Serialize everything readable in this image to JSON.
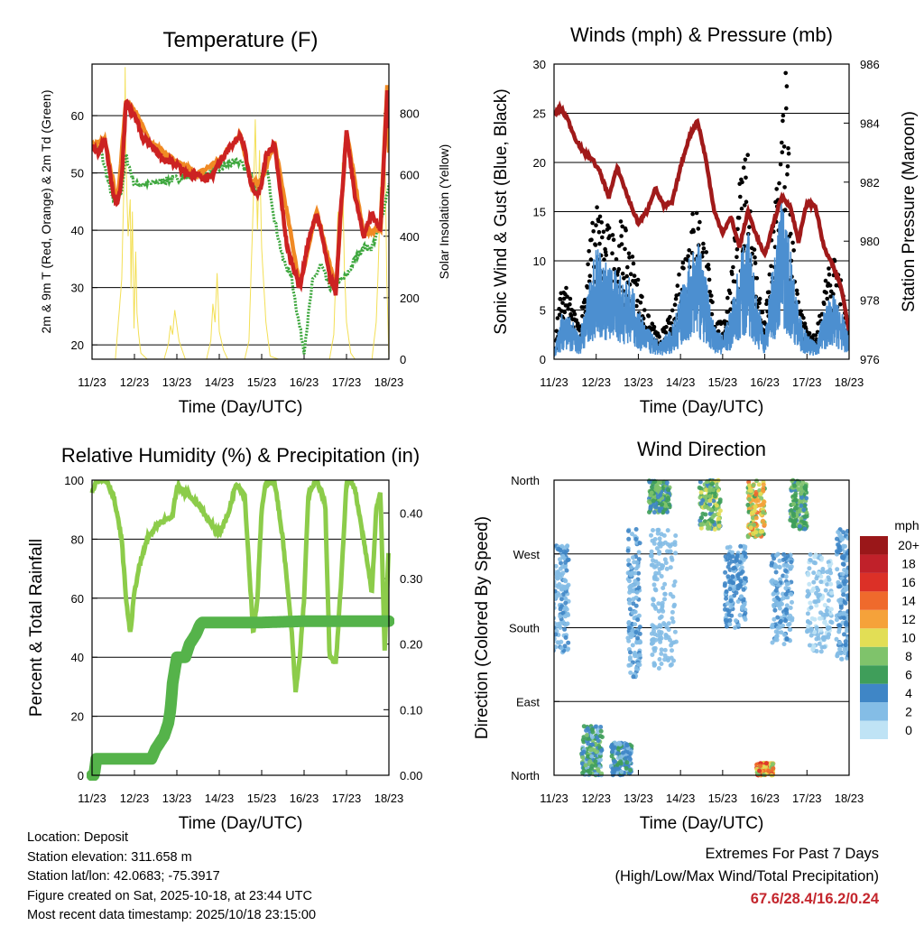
{
  "chart_data": [
    {
      "type": "line",
      "panel": "temperature",
      "title": "Temperature (F)",
      "xlabel": "Time (Day/UTC)",
      "ylabel": "2m & 9m T (Red, Orange) & 2m Td (Green)",
      "y2label": "Solar Insolation (Yellow)",
      "xticks": [
        "11/23",
        "12/23",
        "13/23",
        "14/23",
        "15/23",
        "16/23",
        "17/23",
        "18/23"
      ],
      "xlim": [
        0,
        7
      ],
      "ylim": [
        17.5,
        69
      ],
      "yticks": [
        20,
        30,
        40,
        50,
        60
      ],
      "y2lim": [
        0,
        960
      ],
      "y2ticks": [
        0,
        200,
        400,
        600,
        800
      ],
      "colors": {
        "t2m": "#cc2222",
        "t9m": "#f08a24",
        "dewpoint": "#3ea73e",
        "solar": "#f3df55"
      },
      "series": [
        {
          "name": "2m T",
          "key": "t2m",
          "x": [
            0,
            0.15,
            0.3,
            0.5,
            0.6,
            0.7,
            0.8,
            0.9,
            1.0,
            1.2,
            1.4,
            1.6,
            1.8,
            2.0,
            2.2,
            2.5,
            2.8,
            3.0,
            3.3,
            3.5,
            3.6,
            3.75,
            3.9,
            4.0,
            4.1,
            4.3,
            4.6,
            4.9,
            5.1,
            5.3,
            5.45,
            5.6,
            5.75,
            5.85,
            6.0,
            6.2,
            6.4,
            6.6,
            6.8,
            6.9,
            6.97,
            7.0
          ],
          "values": [
            55,
            53.5,
            56,
            46,
            44.5,
            49,
            62.5,
            61,
            60.5,
            56,
            55,
            53,
            52,
            51.5,
            50,
            49.5,
            49,
            52,
            55,
            56.5,
            54,
            48,
            46,
            48,
            53,
            55,
            37,
            30,
            38,
            43,
            38,
            32,
            29,
            42,
            57,
            46,
            39,
            43,
            40,
            55,
            66,
            53
          ]
        },
        {
          "name": "9m T",
          "key": "t9m",
          "x": [
            0,
            0.3,
            0.6,
            0.8,
            1.0,
            1.4,
            2.0,
            2.5,
            3.0,
            3.5,
            3.75,
            4.0,
            4.3,
            4.9,
            5.3,
            5.75,
            6.0,
            6.4,
            6.8,
            6.97,
            7.0
          ],
          "values": [
            54.8,
            55.6,
            44.8,
            62.8,
            60.8,
            55.2,
            51.8,
            49.8,
            52.2,
            56.8,
            48.2,
            48.6,
            55.4,
            30.4,
            43.4,
            29.6,
            57.4,
            39.4,
            40.4,
            66.6,
            53.4
          ]
        },
        {
          "name": "2m Td",
          "key": "dewpoint",
          "x": [
            0,
            0.2,
            0.5,
            0.7,
            0.8,
            1.0,
            1.3,
            1.6,
            2.0,
            2.4,
            2.8,
            3.2,
            3.5,
            3.7,
            3.9,
            4.0,
            4.1,
            4.3,
            4.5,
            4.7,
            4.85,
            5.0,
            5.2,
            5.4,
            5.6,
            5.8,
            6.0,
            6.2,
            6.4,
            6.6,
            6.8,
            7.0
          ],
          "values": [
            55,
            54,
            45,
            47,
            53,
            48,
            48,
            48.5,
            49,
            49.5,
            50,
            51.5,
            52,
            50,
            47,
            49,
            52,
            42,
            35,
            32,
            25,
            19,
            31,
            34,
            30,
            31,
            32,
            35,
            37,
            37,
            41,
            48
          ]
        },
        {
          "name": "Solar Insolation",
          "key": "solar",
          "axis": "y2",
          "x": [
            0,
            0.55,
            0.62,
            0.7,
            0.72,
            0.74,
            0.77,
            0.78,
            0.8,
            0.85,
            0.9,
            0.92,
            0.95,
            0.99,
            1.03,
            1.06,
            1.1,
            1.15,
            1.3,
            1.7,
            1.8,
            1.85,
            1.9,
            1.95,
            2.05,
            2.2,
            2.7,
            2.8,
            2.85,
            2.9,
            2.95,
            3.0,
            3.1,
            3.2,
            3.6,
            3.7,
            3.75,
            3.8,
            3.85,
            3.9,
            3.95,
            4.0,
            4.1,
            4.2,
            4.4,
            4.7,
            5.0,
            5.3,
            5.6,
            5.7,
            5.75,
            5.8,
            5.85,
            5.9,
            5.95,
            6.0,
            6.1,
            6.2,
            6.4,
            6.6,
            6.7,
            6.75,
            6.8,
            6.85,
            6.9,
            6.95,
            7.0
          ],
          "values": [
            0,
            0,
            120,
            260,
            380,
            500,
            700,
            950,
            640,
            400,
            520,
            230,
            480,
            100,
            350,
            150,
            80,
            20,
            0,
            0,
            50,
            110,
            80,
            160,
            60,
            0,
            0,
            60,
            180,
            120,
            280,
            90,
            30,
            0,
            0,
            60,
            280,
            500,
            780,
            420,
            680,
            360,
            120,
            10,
            0,
            0,
            0,
            0,
            0,
            80,
            280,
            480,
            400,
            640,
            300,
            120,
            20,
            0,
            0,
            0,
            120,
            300,
            560,
            420,
            760,
            260,
            0
          ]
        }
      ]
    },
    {
      "type": "line",
      "panel": "winds",
      "title": "Winds (mph) & Pressure (mb)",
      "xlabel": "Time (Day/UTC)",
      "ylabel": "Sonic Wind & Gust (Blue, Black)",
      "y2label": "Station Pressure (Maroon)",
      "xticks": [
        "11/23",
        "12/23",
        "13/23",
        "14/23",
        "15/23",
        "16/23",
        "17/23",
        "18/23"
      ],
      "xlim": [
        0,
        7
      ],
      "ylim": [
        0,
        30
      ],
      "yticks": [
        0,
        5,
        10,
        15,
        20,
        25,
        30
      ],
      "y2lim": [
        976,
        986
      ],
      "y2ticks": [
        976,
        978,
        980,
        982,
        984,
        986
      ],
      "colors": {
        "wind": "#4c8fd0",
        "gust": "#000000",
        "pressure": "#a01a1a"
      },
      "series": [
        {
          "name": "Sonic Wind",
          "key": "wind",
          "x": [
            0,
            0.2,
            0.4,
            0.5,
            0.6,
            0.8,
            1.0,
            1.2,
            1.4,
            1.6,
            1.8,
            2.0,
            2.2,
            2.5,
            2.8,
            3.0,
            3.2,
            3.4,
            3.6,
            3.8,
            4.0,
            4.2,
            4.4,
            4.6,
            4.8,
            5.0,
            5.2,
            5.4,
            5.6,
            5.8,
            6.0,
            6.2,
            6.4,
            6.6,
            6.8,
            7.0
          ],
          "values": [
            0.5,
            3,
            2.5,
            2,
            1.5,
            4,
            7,
            6,
            5.5,
            5,
            5,
            3,
            2,
            1,
            2,
            4,
            6,
            7.5,
            5,
            2,
            1.5,
            3,
            6,
            8,
            4,
            1.5,
            6,
            10,
            7,
            3,
            1.5,
            1,
            3,
            4,
            3,
            1.5
          ]
        },
        {
          "name": "Gust",
          "key": "gust",
          "x": [
            0,
            0.2,
            0.4,
            0.6,
            0.8,
            1.0,
            1.2,
            1.4,
            1.6,
            1.8,
            2.0,
            2.2,
            2.5,
            2.8,
            3.0,
            3.2,
            3.4,
            3.6,
            3.8,
            4.0,
            4.2,
            4.4,
            4.6,
            4.8,
            5.0,
            5.2,
            5.4,
            5.5,
            5.6,
            5.8,
            6.0,
            6.2,
            6.4,
            6.6,
            6.8,
            7.0
          ],
          "values": [
            1,
            7,
            5,
            3,
            9,
            14,
            12,
            11,
            12,
            10,
            7,
            4,
            2,
            4,
            9,
            12,
            14,
            10,
            4,
            3,
            8,
            15,
            18,
            8,
            3,
            12,
            22,
            27,
            14,
            5,
            2.5,
            2,
            6,
            9,
            7,
            3
          ]
        },
        {
          "name": "Station Pressure",
          "key": "pressure",
          "axis": "y2",
          "x": [
            0,
            0.15,
            0.3,
            0.5,
            0.7,
            0.9,
            1.1,
            1.3,
            1.5,
            1.8,
            2.0,
            2.2,
            2.4,
            2.6,
            2.8,
            3.0,
            3.2,
            3.4,
            3.6,
            3.8,
            4.0,
            4.2,
            4.4,
            4.6,
            4.8,
            5.0,
            5.2,
            5.4,
            5.6,
            5.8,
            6.0,
            6.2,
            6.4,
            6.6,
            6.8,
            7.0
          ],
          "values": [
            984.3,
            984.5,
            984.2,
            983.5,
            983.0,
            982.8,
            982.3,
            981.5,
            982.5,
            981.3,
            980.6,
            981.0,
            981.8,
            981.2,
            981.3,
            982.5,
            983.5,
            984.1,
            982.8,
            981.0,
            980.3,
            980.8,
            979.8,
            981.0,
            980.2,
            979.5,
            980.6,
            981.5,
            981.2,
            980.0,
            981.3,
            981.2,
            979.8,
            979.2,
            978.5,
            977.0
          ]
        }
      ]
    },
    {
      "type": "line",
      "panel": "humidity",
      "title": "Relative Humidity (%) & Precipitation (in)",
      "xlabel": "Time (Day/UTC)",
      "ylabel": "Percent & Total Rainfall",
      "xticks": [
        "11/23",
        "12/23",
        "13/23",
        "14/23",
        "15/23",
        "16/23",
        "17/23",
        "18/23"
      ],
      "xlim": [
        0,
        7
      ],
      "ylim": [
        0,
        100
      ],
      "yticks": [
        0,
        20,
        40,
        60,
        80,
        100
      ],
      "y2lim": [
        0,
        0.45
      ],
      "y2ticks": [
        "0.00",
        "0.10",
        "0.20",
        "0.30",
        "0.40"
      ],
      "colors": {
        "rh": "#8ccc4a",
        "precip": "#55b34a"
      },
      "series": [
        {
          "name": "Relative Humidity",
          "key": "rh",
          "x": [
            0,
            0.1,
            0.2,
            0.35,
            0.5,
            0.7,
            0.8,
            0.9,
            0.95,
            1.0,
            1.1,
            1.3,
            1.5,
            1.7,
            1.9,
            2.0,
            2.2,
            2.5,
            2.8,
            3.0,
            3.2,
            3.4,
            3.6,
            3.8,
            3.9,
            4.0,
            4.1,
            4.3,
            4.5,
            4.7,
            4.8,
            4.9,
            5.0,
            5.1,
            5.3,
            5.5,
            5.6,
            5.75,
            5.85,
            6.0,
            6.1,
            6.2,
            6.4,
            6.6,
            6.7,
            6.8,
            6.9,
            6.95,
            7.0
          ],
          "values": [
            96,
            100,
            100,
            100,
            95,
            80,
            60,
            48,
            55,
            62,
            70,
            80,
            84,
            86,
            88,
            98,
            96,
            92,
            85,
            82,
            88,
            99,
            95,
            48,
            60,
            90,
            99,
            100,
            80,
            50,
            28,
            40,
            60,
            95,
            100,
            92,
            40,
            38,
            60,
            99,
            100,
            97,
            80,
            62,
            90,
            96,
            42,
            60,
            80
          ]
        },
        {
          "name": "Total Precipitation",
          "key": "precip",
          "axis": "y2",
          "x": [
            0,
            0.05,
            0.1,
            0.5,
            1.0,
            1.4,
            1.5,
            1.6,
            1.7,
            1.8,
            1.85,
            1.9,
            2.0,
            2.2,
            2.3,
            2.45,
            2.55,
            2.6,
            4.0,
            5.0,
            6.0,
            7.0
          ],
          "values": [
            0,
            0,
            0.025,
            0.025,
            0.025,
            0.025,
            0.04,
            0.05,
            0.06,
            0.08,
            0.1,
            0.14,
            0.18,
            0.18,
            0.2,
            0.215,
            0.23,
            0.233,
            0.233,
            0.235,
            0.235,
            0.235
          ]
        }
      ]
    },
    {
      "type": "scatter",
      "panel": "wind_direction",
      "title": "Wind Direction",
      "xlabel": "Time (Day/UTC)",
      "ylabel": "Direction (Colored By Speed)",
      "xticks": [
        "11/23",
        "12/23",
        "13/23",
        "14/23",
        "15/23",
        "16/23",
        "17/23",
        "18/23"
      ],
      "xlim": [
        0,
        7
      ],
      "ylim": [
        0,
        360
      ],
      "yticks": [
        "North",
        "East",
        "South",
        "West",
        "North"
      ],
      "colorbar": {
        "label": "mph",
        "levels": [
          "0",
          "2",
          "4",
          "6",
          "8",
          "10",
          "12",
          "14",
          "16",
          "18",
          "20+"
        ],
        "colors": [
          "#bfe3f5",
          "#84bde6",
          "#3f86c6",
          "#3f9e5a",
          "#7fc36b",
          "#e2de55",
          "#f5a23a",
          "#ef6a2c",
          "#dc3027",
          "#c0212a",
          "#9a1719"
        ]
      },
      "clusters": [
        {
          "x": 0.15,
          "spread": 0.4,
          "dir": [
            150,
            280
          ],
          "speed": [
            1,
            4
          ]
        },
        {
          "x": 0.9,
          "spread": 0.5,
          "dir": [
            0,
            60
          ],
          "speed": [
            2,
            8
          ]
        },
        {
          "x": 1.6,
          "spread": 0.5,
          "dir": [
            0,
            40
          ],
          "speed": [
            2,
            6
          ]
        },
        {
          "x": 1.9,
          "spread": 0.3,
          "dir": [
            120,
            300
          ],
          "speed": [
            1,
            4
          ]
        },
        {
          "x": 2.5,
          "spread": 0.5,
          "dir": [
            320,
            360
          ],
          "speed": [
            3,
            9
          ]
        },
        {
          "x": 2.6,
          "spread": 0.6,
          "dir": [
            130,
            300
          ],
          "speed": [
            1,
            3
          ]
        },
        {
          "x": 3.7,
          "spread": 0.5,
          "dir": [
            300,
            360
          ],
          "speed": [
            4,
            11
          ]
        },
        {
          "x": 4.3,
          "spread": 0.5,
          "dir": [
            180,
            280
          ],
          "speed": [
            1,
            5
          ]
        },
        {
          "x": 4.8,
          "spread": 0.4,
          "dir": [
            290,
            360
          ],
          "speed": [
            6,
            14
          ]
        },
        {
          "x": 5.0,
          "spread": 0.4,
          "dir": [
            0,
            15
          ],
          "speed": [
            8,
            16
          ]
        },
        {
          "x": 5.4,
          "spread": 0.5,
          "dir": [
            160,
            270
          ],
          "speed": [
            1,
            4
          ]
        },
        {
          "x": 5.8,
          "spread": 0.4,
          "dir": [
            300,
            360
          ],
          "speed": [
            4,
            9
          ]
        },
        {
          "x": 6.3,
          "spread": 0.6,
          "dir": [
            150,
            270
          ],
          "speed": [
            0,
            3
          ]
        },
        {
          "x": 6.85,
          "spread": 0.3,
          "dir": [
            140,
            300
          ],
          "speed": [
            1,
            5
          ]
        }
      ]
    }
  ],
  "info": {
    "location": "Location: Deposit",
    "elevation": "Station elevation: 311.658 m",
    "latlon": "Station lat/lon: 42.0683; -75.3917",
    "created": "Figure created on Sat, 2025-10-18, at 23:44 UTC",
    "timestamp": "Most recent data timestamp: 2025/10/18 23:15:00"
  },
  "extremes": {
    "title": "Extremes For Past 7 Days",
    "subtitle": "(High/Low/Max Wind/Total Precipitation)",
    "values": "67.6/28.4/16.2/0.24"
  }
}
